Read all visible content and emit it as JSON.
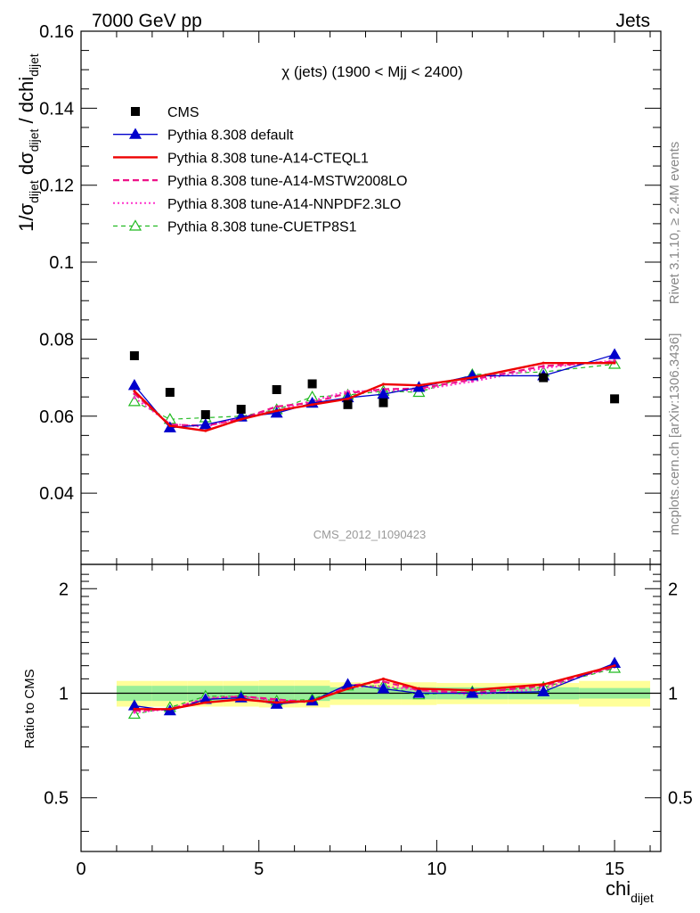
{
  "header": {
    "left": "7000 GeV pp",
    "right": "Jets"
  },
  "side_labels": {
    "rivet": "Rivet 3.1.10, ≥ 2.4M events",
    "mcplots": "mcplots.cern.ch [arXiv:1306.3436]"
  },
  "watermark": "CMS_2012_I1090423",
  "colors": {
    "cms": "#000000",
    "default": "#0000cc",
    "cteql1": "#ee0000",
    "mstw": "#ee1188",
    "nnpdf": "#ff33cc",
    "cuetp": "#22bb22",
    "band_inner": "#99ee99",
    "band_outer": "#ffff99"
  },
  "chart_data": [
    {
      "type": "line",
      "title": "χ (jets) (1900 < Mjj < 2400)",
      "xlabel": "chi_dijet",
      "ylabel": "1/σ_dijet dσ_dijet / dchi_dijet",
      "xlim": [
        0,
        16.3
      ],
      "ylim": [
        0.0215,
        0.16
      ],
      "yticks": [
        0.04,
        0.06,
        0.08,
        0.1,
        0.12,
        0.14,
        0.16
      ],
      "ytick_labels": [
        "0.04",
        "0.06",
        "0.08",
        "0.1",
        "0.12",
        "0.14",
        "0.16"
      ],
      "legend_position": "top-left",
      "x": [
        1.5,
        2.5,
        3.5,
        4.5,
        5.5,
        6.5,
        7.5,
        8.5,
        9.5,
        11,
        13,
        15
      ],
      "x_edges": [
        1,
        2,
        3,
        4,
        5,
        6,
        7,
        8,
        9,
        10,
        12,
        14,
        16
      ],
      "series": [
        {
          "name": "CMS",
          "key": "cms",
          "style": "data",
          "values": [
            0.0757,
            0.0662,
            0.0604,
            0.0618,
            0.0669,
            0.0684,
            0.063,
            0.0635,
            null,
            null,
            0.07,
            0.0645
          ]
        },
        {
          "name": "Pythia 8.308 default",
          "key": "default",
          "style": "solid-thin",
          "marker": "triangle",
          "values": [
            0.068,
            0.057,
            0.0578,
            0.0598,
            0.0608,
            0.0634,
            0.0648,
            0.0657,
            0.0675,
            0.0705,
            0.0705,
            0.076
          ]
        },
        {
          "name": "Pythia 8.308 tune-A14-CTEQL1",
          "key": "cteql1",
          "style": "solid-thick",
          "values": [
            0.0665,
            0.0575,
            0.0562,
            0.0592,
            0.0614,
            0.063,
            0.0645,
            0.0683,
            0.068,
            0.07,
            0.0738,
            0.0738
          ]
        },
        {
          "name": "Pythia 8.308 tune-A14-MSTW2008LO",
          "key": "mstw",
          "style": "dashed",
          "values": [
            0.0658,
            0.0578,
            0.0575,
            0.0593,
            0.0625,
            0.0635,
            0.066,
            0.067,
            0.0672,
            0.0695,
            0.073,
            0.0742
          ]
        },
        {
          "name": "Pythia 8.308 tune-A14-NNPDF2.3LO",
          "key": "nnpdf",
          "style": "dotted",
          "values": [
            0.0648,
            0.058,
            0.0572,
            0.0598,
            0.0615,
            0.064,
            0.0665,
            0.0665,
            0.0668,
            0.069,
            0.0725,
            0.0745
          ]
        },
        {
          "name": "Pythia 8.308 tune-CUETP8S1",
          "key": "cuetp",
          "style": "dashed-thin",
          "marker": "open-triangle",
          "values": [
            0.0638,
            0.0592,
            0.0596,
            0.06,
            0.0617,
            0.065,
            0.0655,
            0.0665,
            0.0662,
            0.0708,
            0.0715,
            0.0735
          ]
        }
      ]
    },
    {
      "type": "line",
      "ylabel": "Ratio to CMS",
      "xlabel": "chi_dijet",
      "xlim": [
        0,
        16.3
      ],
      "ylim": [
        0.35,
        2.35
      ],
      "yscale": "log",
      "yticks": [
        0.5,
        1,
        2
      ],
      "ytick_labels": [
        "0.5",
        "1",
        "2"
      ],
      "xticks": [
        0,
        5,
        10,
        15
      ],
      "xtick_labels": [
        "0",
        "5",
        "10",
        "15"
      ],
      "x": [
        1.5,
        2.5,
        3.5,
        4.5,
        5.5,
        6.5,
        7.5,
        8.5,
        9.5,
        11,
        13,
        15
      ],
      "band_inner_halfwidth": [
        0.05,
        0.05,
        0.05,
        0.05,
        0.05,
        0.05,
        0.04,
        0.04,
        0.04,
        0.04,
        0.04,
        0.035
      ],
      "band_outer_halfwidth": [
        0.085,
        0.085,
        0.085,
        0.085,
        0.09,
        0.09,
        0.075,
        0.075,
        0.075,
        0.07,
        0.07,
        0.085
      ],
      "series": [
        {
          "key": "default",
          "values": [
            0.92,
            0.89,
            0.96,
            0.97,
            0.93,
            0.95,
            1.06,
            1.03,
            1.0,
            1.0,
            1.01,
            1.22
          ]
        },
        {
          "key": "cteql1",
          "values": [
            0.9,
            0.9,
            0.94,
            0.96,
            0.94,
            0.95,
            1.03,
            1.1,
            1.03,
            1.02,
            1.06,
            1.2
          ]
        },
        {
          "key": "mstw",
          "values": [
            0.89,
            0.9,
            0.96,
            0.98,
            0.96,
            0.94,
            1.05,
            1.08,
            1.02,
            1.0,
            1.05,
            1.19
          ]
        },
        {
          "key": "nnpdf",
          "values": [
            0.88,
            0.9,
            0.97,
            0.98,
            0.95,
            0.95,
            1.04,
            1.05,
            1.02,
            0.99,
            1.03,
            1.2
          ]
        },
        {
          "key": "cuetp",
          "values": [
            0.87,
            0.91,
            0.98,
            0.98,
            0.95,
            0.96,
            1.05,
            1.05,
            0.99,
            1.01,
            1.04,
            1.18
          ]
        }
      ]
    }
  ]
}
